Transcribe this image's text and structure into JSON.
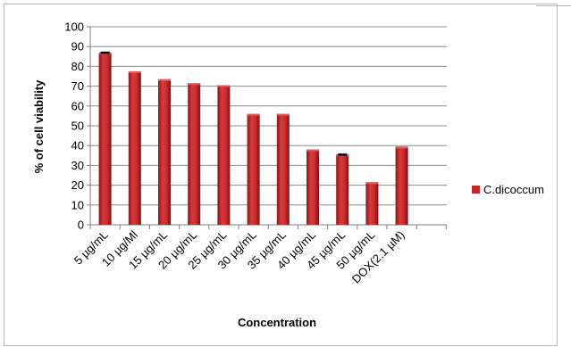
{
  "chart_data": {
    "type": "bar",
    "title": "",
    "xlabel": "Concentration",
    "ylabel": "% of cell viability",
    "ylim": [
      0,
      100
    ],
    "yticks": [
      0,
      10,
      20,
      30,
      40,
      50,
      60,
      70,
      80,
      90,
      100
    ],
    "grid": true,
    "legend_position": "right",
    "categories": [
      "5 µg/mL",
      "10 µg/Ml",
      "15 µg/mL",
      "20 µg/mL",
      "25 µg/mL",
      "30 µg/mL",
      "35 µg/mL",
      "40 µg/mL",
      "45 µg/mL",
      "50 µg/mL",
      "DOX(2.1 µM)"
    ],
    "series": [
      {
        "name": "C.dicoccum",
        "color": "#c0282a",
        "values": [
          87,
          77.5,
          73.5,
          71.5,
          70.5,
          56,
          56,
          38,
          35.5,
          21.5,
          39.5
        ],
        "error": [
          0.5,
          0,
          0,
          0,
          0,
          0,
          0,
          0,
          0.5,
          0,
          0
        ]
      }
    ]
  }
}
